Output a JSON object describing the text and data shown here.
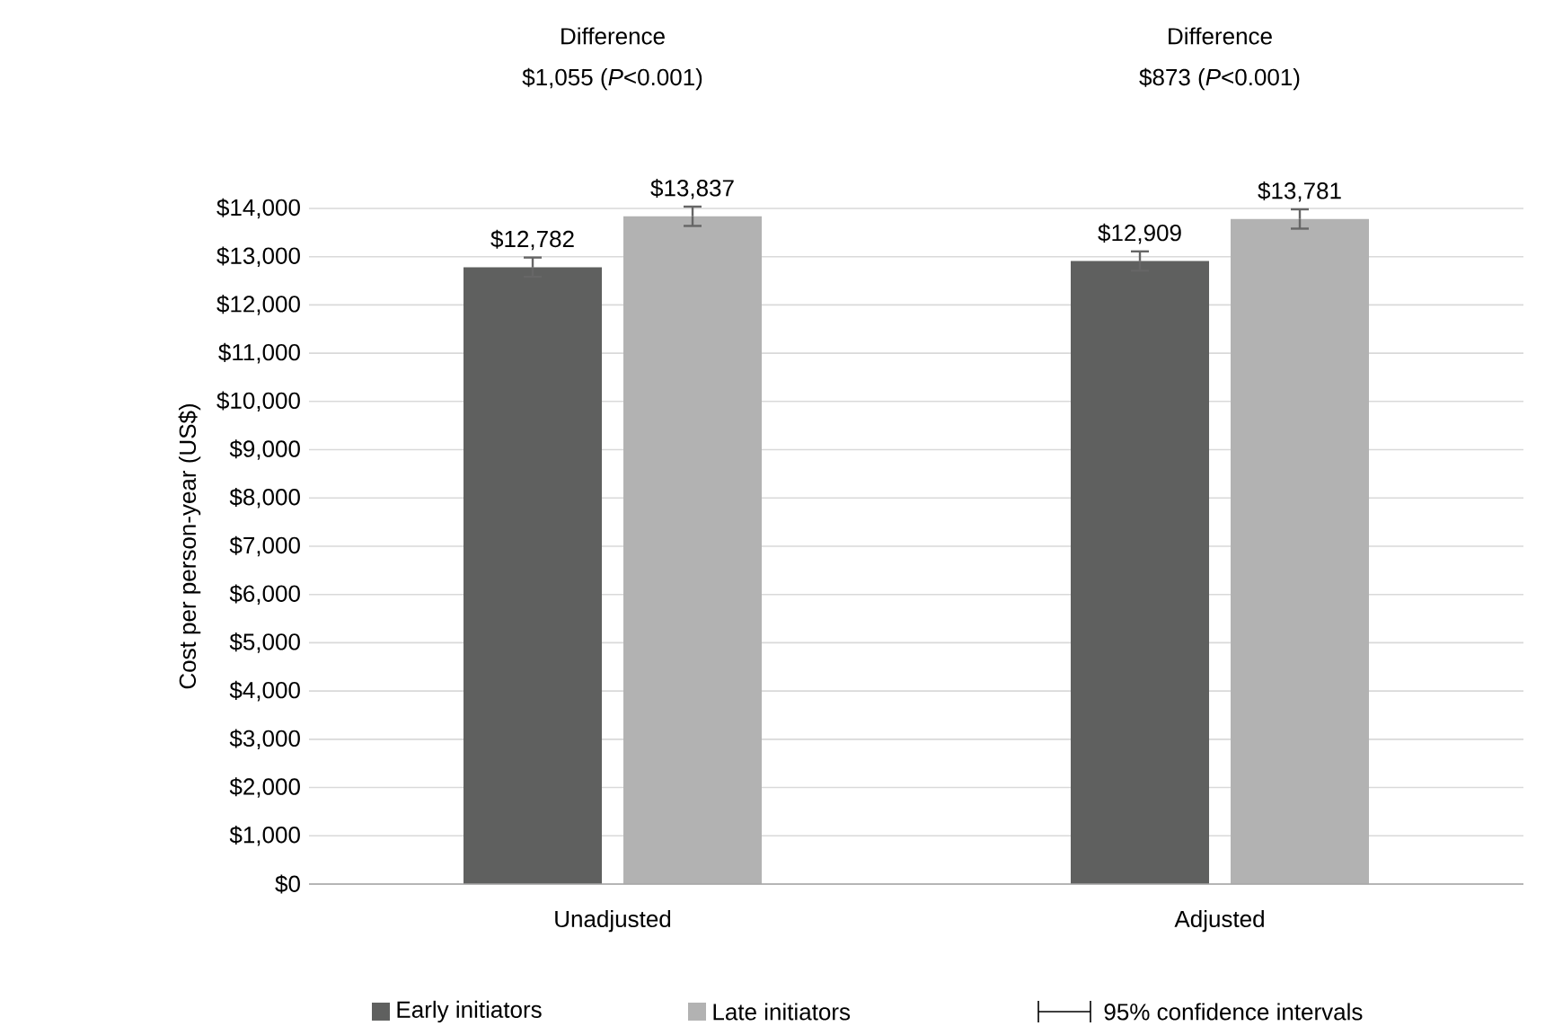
{
  "chart_data": {
    "type": "bar",
    "ylabel": "Cost per person-year (US$)",
    "categories": [
      "Unadjusted",
      "Adjusted"
    ],
    "series": [
      {
        "name": "Early initiators",
        "color": "#5f605f",
        "values": [
          12782,
          12909
        ],
        "errors": [
          200,
          200
        ],
        "value_labels": [
          "$12,782",
          "$12,909"
        ]
      },
      {
        "name": "Late initiators",
        "color": "#b2b2b2",
        "values": [
          13837,
          13781
        ],
        "errors": [
          200,
          200
        ],
        "value_labels": [
          "$13,837",
          "$13,781"
        ]
      }
    ],
    "ylim": [
      0,
      14000
    ],
    "yticks": [
      {
        "value": 0,
        "label": "$0"
      },
      {
        "value": 1000,
        "label": "$1,000"
      },
      {
        "value": 2000,
        "label": "$2,000"
      },
      {
        "value": 3000,
        "label": "$3,000"
      },
      {
        "value": 4000,
        "label": "$4,000"
      },
      {
        "value": 5000,
        "label": "$5,000"
      },
      {
        "value": 6000,
        "label": "$6,000"
      },
      {
        "value": 7000,
        "label": "$7,000"
      },
      {
        "value": 8000,
        "label": "$8,000"
      },
      {
        "value": 9000,
        "label": "$9,000"
      },
      {
        "value": 10000,
        "label": "$10,000"
      },
      {
        "value": 11000,
        "label": "$11,000"
      },
      {
        "value": 12000,
        "label": "$12,000"
      },
      {
        "value": 13000,
        "label": "$13,000"
      },
      {
        "value": 14000,
        "label": "$14,000"
      }
    ],
    "grid": "y",
    "legend": "bottom",
    "annotations": [
      "Difference",
      "$1,055 (*P*<0.001)",
      "Difference",
      "$873 (*P*<0.001)",
      "95% confidence intervals"
    ]
  }
}
